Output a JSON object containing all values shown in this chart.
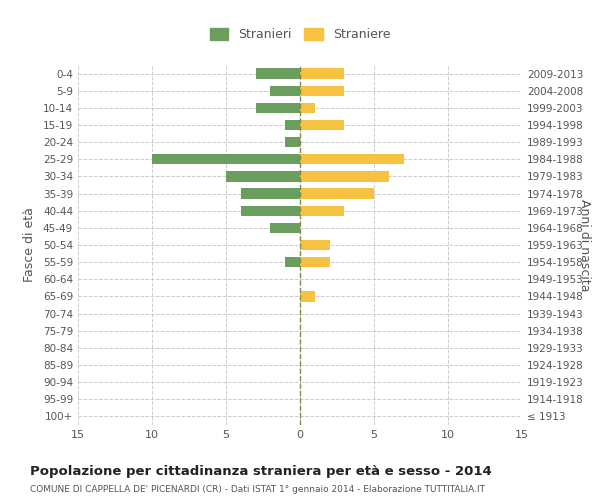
{
  "age_groups": [
    "100+",
    "95-99",
    "90-94",
    "85-89",
    "80-84",
    "75-79",
    "70-74",
    "65-69",
    "60-64",
    "55-59",
    "50-54",
    "45-49",
    "40-44",
    "35-39",
    "30-34",
    "25-29",
    "20-24",
    "15-19",
    "10-14",
    "5-9",
    "0-4"
  ],
  "birth_years": [
    "≤ 1913",
    "1914-1918",
    "1919-1923",
    "1924-1928",
    "1929-1933",
    "1934-1938",
    "1939-1943",
    "1944-1948",
    "1949-1953",
    "1954-1958",
    "1959-1963",
    "1964-1968",
    "1969-1973",
    "1974-1978",
    "1979-1983",
    "1984-1988",
    "1989-1993",
    "1994-1998",
    "1999-2003",
    "2004-2008",
    "2009-2013"
  ],
  "males": [
    0,
    0,
    0,
    0,
    0,
    0,
    0,
    0,
    0,
    1,
    0,
    2,
    4,
    4,
    5,
    10,
    1,
    1,
    3,
    2,
    3
  ],
  "females": [
    0,
    0,
    0,
    0,
    0,
    0,
    0,
    1,
    0,
    2,
    2,
    0,
    3,
    5,
    6,
    7,
    0,
    3,
    1,
    3,
    3
  ],
  "male_color": "#6a9e5f",
  "female_color": "#f5c242",
  "title": "Popolazione per cittadinanza straniera per età e sesso - 2014",
  "subtitle": "COMUNE DI CAPPELLA DE' PICENARDI (CR) - Dati ISTAT 1° gennaio 2014 - Elaborazione TUTTITALIA.IT",
  "ylabel_left": "Fasce di età",
  "ylabel_right": "Anni di nascita",
  "legend_male": "Stranieri",
  "legend_female": "Straniere",
  "xlim": 15,
  "background_color": "#ffffff",
  "grid_color": "#cccccc",
  "text_color": "#555555"
}
